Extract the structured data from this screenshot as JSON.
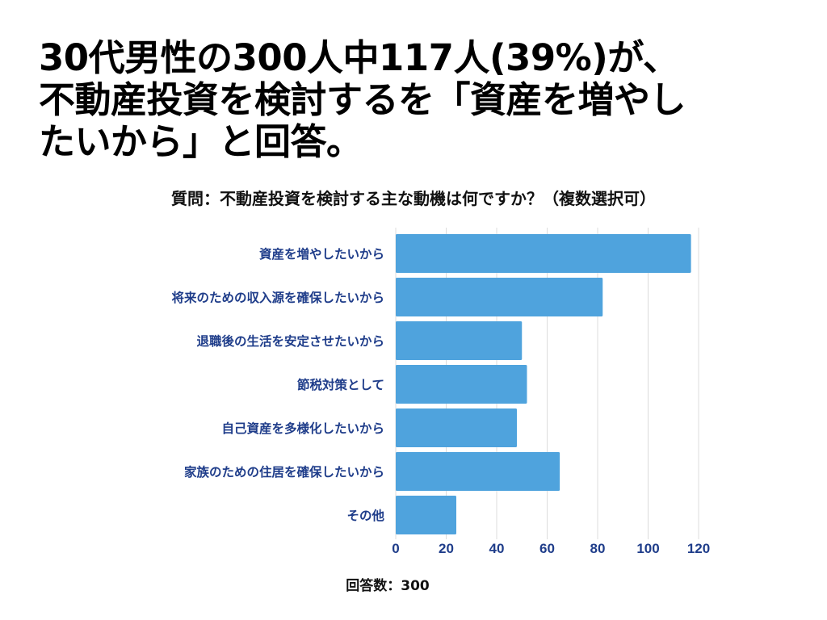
{
  "headline": {
    "line1": "30代男性の300人中117人(39%)が、",
    "line2": "不動産投資を検討するを「資産を増やし",
    "line3": "たいから」と回答。"
  },
  "chart_data": {
    "type": "bar",
    "orientation": "horizontal",
    "title": "質問：不動産投資を検討する主な動機は何ですか？（複数選択可）",
    "categories": [
      "資産を増やしたいから",
      "将来のための収入源を確保したいから",
      "退職後の生活を安定させたいから",
      "節税対策として",
      "自己資産を多様化したいから",
      "家族のための住居を確保したいから",
      "その他"
    ],
    "values": [
      117,
      82,
      50,
      52,
      48,
      65,
      24
    ],
    "xlim": [
      0,
      120
    ],
    "xticks": [
      0,
      20,
      40,
      60,
      80,
      100,
      120
    ],
    "grid": true,
    "bar_color": "#4fa3dd",
    "label_color": "#1f3d8a",
    "footnote": "回答数：300"
  }
}
